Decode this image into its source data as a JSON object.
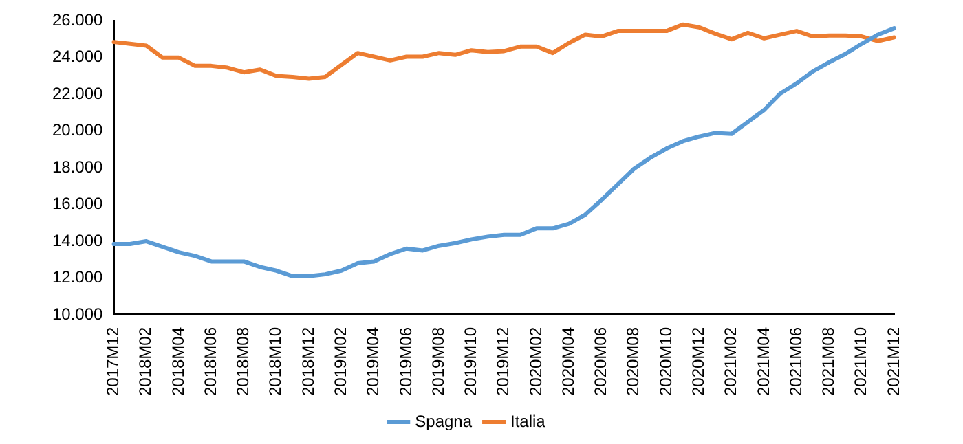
{
  "chart_data": {
    "type": "line",
    "categories": [
      "2017M12",
      null,
      "2018M02",
      null,
      "2018M04",
      null,
      "2018M06",
      null,
      "2018M08",
      null,
      "2018M10",
      null,
      "2018M12",
      null,
      "2019M02",
      null,
      "2019M04",
      null,
      "2019M06",
      null,
      "2019M08",
      null,
      "2019M10",
      null,
      "2019M12",
      null,
      "2020M02",
      null,
      "2020M04",
      null,
      "2020M06",
      null,
      "2020M08",
      null,
      "2020M10",
      null,
      "2020M12",
      null,
      "2021M02",
      null,
      "2021M04",
      null,
      "2021M06",
      null,
      "2021M08",
      null,
      "2021M10",
      null,
      "2021M12"
    ],
    "series": [
      {
        "name": "Spagna",
        "color": "#5b9bd5",
        "values": [
          13850,
          13850,
          14000,
          13700,
          13400,
          13200,
          12900,
          12900,
          12900,
          12600,
          12400,
          12100,
          12100,
          12200,
          12400,
          12800,
          12900,
          13300,
          13600,
          13500,
          13750,
          13900,
          14100,
          14250,
          14350,
          14350,
          14700,
          14700,
          14950,
          15450,
          16250,
          17100,
          17950,
          18550,
          19050,
          19450,
          19700,
          19900,
          19850,
          20500,
          21150,
          22050,
          22600,
          23250,
          23750,
          24200,
          24750,
          25250,
          25600
        ]
      },
      {
        "name": "Italia",
        "color": "#ed7d31",
        "values": [
          24850,
          24750,
          24650,
          24000,
          24000,
          23550,
          23550,
          23450,
          23200,
          23350,
          23000,
          22950,
          22850,
          22950,
          23600,
          24250,
          24050,
          23850,
          24050,
          24050,
          24250,
          24150,
          24400,
          24300,
          24350,
          24600,
          24600,
          24250,
          24800,
          25250,
          25150,
          25450,
          25450,
          25450,
          25450,
          25800,
          25650,
          25300,
          25000,
          25350,
          25050,
          25250,
          25450,
          25150,
          25200,
          25200,
          25150,
          24900,
          25100
        ]
      }
    ],
    "ylim": [
      10000,
      26000
    ],
    "yticks": [
      {
        "value": 10000,
        "label": "10.000"
      },
      {
        "value": 12000,
        "label": "12.000"
      },
      {
        "value": 14000,
        "label": "14.000"
      },
      {
        "value": 16000,
        "label": "16.000"
      },
      {
        "value": 18000,
        "label": "18.000"
      },
      {
        "value": 20000,
        "label": "20.000"
      },
      {
        "value": 22000,
        "label": "22.000"
      },
      {
        "value": 24000,
        "label": "24.000"
      },
      {
        "value": 26000,
        "label": "26.000"
      }
    ],
    "grid": false,
    "legend": "bottom",
    "marker": "none",
    "line_style": "solid"
  }
}
